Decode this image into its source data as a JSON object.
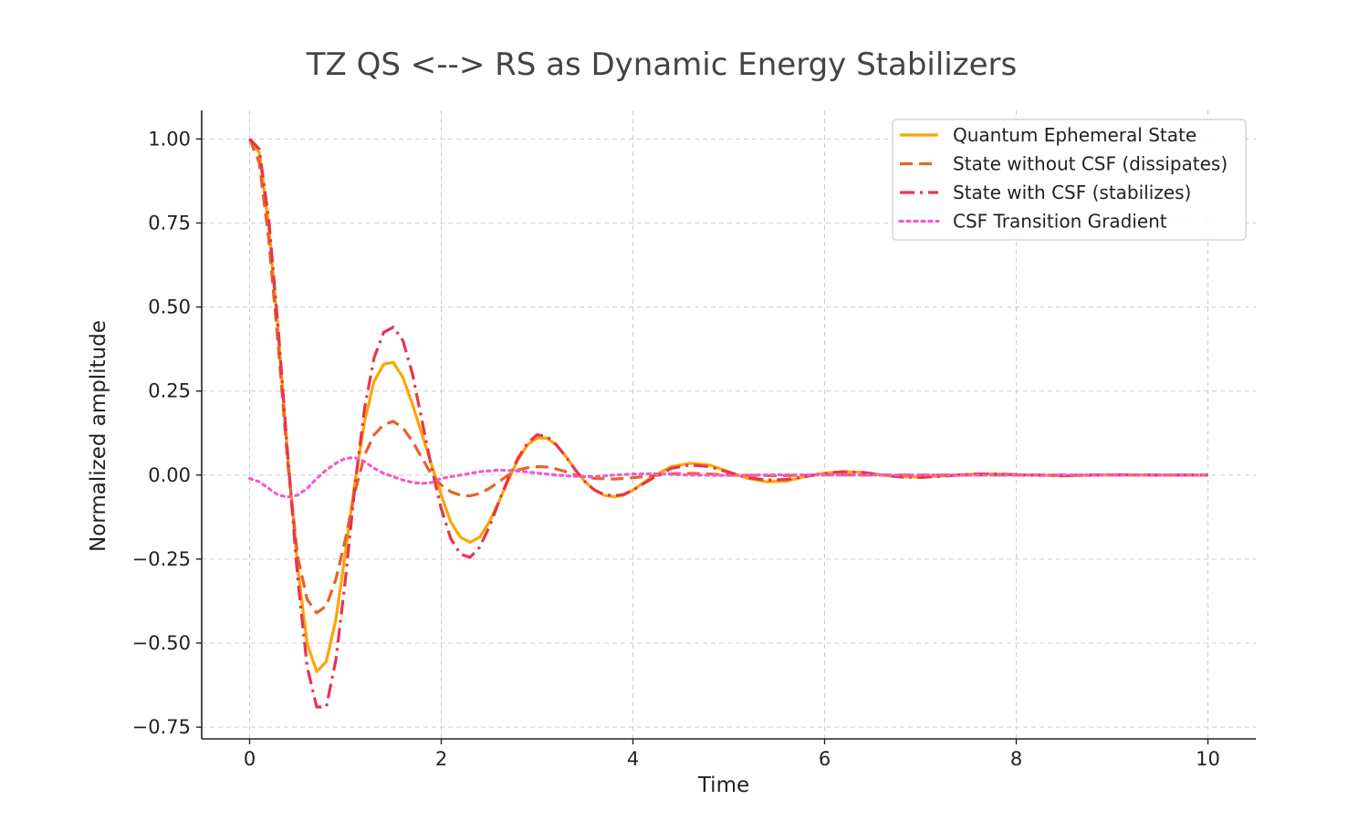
{
  "chart_data": {
    "type": "line",
    "title": "TZ QS <--> RS as Dynamic Energy Stabilizers",
    "xlabel": "Time",
    "ylabel": "Normalized amplitude",
    "xlim": [
      -0.5,
      10.5
    ],
    "ylim": [
      -0.785,
      1.085
    ],
    "xticks": [
      0,
      2,
      4,
      6,
      8,
      10
    ],
    "xtick_labels": [
      "0",
      "2",
      "4",
      "6",
      "8",
      "10"
    ],
    "yticks": [
      1.0,
      0.75,
      0.5,
      0.25,
      0.0,
      -0.25,
      -0.5,
      -0.75
    ],
    "ytick_labels": [
      "1.00",
      "0.75",
      "0.50",
      "0.25",
      "0.00",
      "−0.25",
      "−0.50",
      "−0.75"
    ],
    "grid": true,
    "legend_position": "top-right",
    "series": [
      {
        "name": "Quantum Ephemeral State",
        "color": "#FFA500",
        "style": "solid",
        "points": [
          [
            0,
            1.0
          ],
          [
            0.1,
            0.96
          ],
          [
            0.2,
            0.74
          ],
          [
            0.3,
            0.42
          ],
          [
            0.4,
            0.05
          ],
          [
            0.5,
            -0.27
          ],
          [
            0.6,
            -0.5
          ],
          [
            0.7,
            -0.585
          ],
          [
            0.8,
            -0.555
          ],
          [
            0.9,
            -0.43
          ],
          [
            1.0,
            -0.23
          ],
          [
            1.1,
            -0.02
          ],
          [
            1.2,
            0.16
          ],
          [
            1.3,
            0.28
          ],
          [
            1.4,
            0.33
          ],
          [
            1.5,
            0.335
          ],
          [
            1.6,
            0.29
          ],
          [
            1.7,
            0.21
          ],
          [
            1.8,
            0.12
          ],
          [
            1.9,
            0.03
          ],
          [
            2.0,
            -0.06
          ],
          [
            2.1,
            -0.14
          ],
          [
            2.2,
            -0.185
          ],
          [
            2.3,
            -0.2
          ],
          [
            2.4,
            -0.185
          ],
          [
            2.5,
            -0.14
          ],
          [
            2.6,
            -0.08
          ],
          [
            2.7,
            -0.015
          ],
          [
            2.8,
            0.045
          ],
          [
            2.9,
            0.09
          ],
          [
            3.0,
            0.11
          ],
          [
            3.1,
            0.11
          ],
          [
            3.2,
            0.09
          ],
          [
            3.3,
            0.055
          ],
          [
            3.4,
            0.015
          ],
          [
            3.5,
            -0.02
          ],
          [
            3.6,
            -0.045
          ],
          [
            3.7,
            -0.06
          ],
          [
            3.8,
            -0.065
          ],
          [
            3.9,
            -0.06
          ],
          [
            4.0,
            -0.045
          ],
          [
            4.2,
            -0.005
          ],
          [
            4.4,
            0.025
          ],
          [
            4.6,
            0.035
          ],
          [
            4.8,
            0.03
          ],
          [
            5.0,
            0.01
          ],
          [
            5.2,
            -0.01
          ],
          [
            5.4,
            -0.02
          ],
          [
            5.6,
            -0.018
          ],
          [
            5.8,
            -0.005
          ],
          [
            6.0,
            0.006
          ],
          [
            6.2,
            0.01
          ],
          [
            6.4,
            0.008
          ],
          [
            6.6,
            0.0
          ],
          [
            6.8,
            -0.005
          ],
          [
            7.0,
            -0.006
          ],
          [
            7.2,
            -0.003
          ],
          [
            7.4,
            0.001
          ],
          [
            7.6,
            0.003
          ],
          [
            7.8,
            0.003
          ],
          [
            8.0,
            0.001
          ],
          [
            8.5,
            -0.002
          ],
          [
            9.0,
            0.001
          ],
          [
            9.5,
            0.0
          ],
          [
            10.0,
            0.0
          ]
        ]
      },
      {
        "name": "State without CSF (dissipates)",
        "color": "#E8622A",
        "style": "dashed",
        "points": [
          [
            0,
            1.0
          ],
          [
            0.1,
            0.93
          ],
          [
            0.2,
            0.7
          ],
          [
            0.3,
            0.38
          ],
          [
            0.4,
            0.03
          ],
          [
            0.5,
            -0.24
          ],
          [
            0.6,
            -0.37
          ],
          [
            0.7,
            -0.41
          ],
          [
            0.8,
            -0.39
          ],
          [
            0.9,
            -0.31
          ],
          [
            1.0,
            -0.19
          ],
          [
            1.1,
            -0.05
          ],
          [
            1.2,
            0.06
          ],
          [
            1.3,
            0.12
          ],
          [
            1.4,
            0.15
          ],
          [
            1.5,
            0.16
          ],
          [
            1.6,
            0.14
          ],
          [
            1.7,
            0.1
          ],
          [
            1.8,
            0.05
          ],
          [
            1.9,
            0.0
          ],
          [
            2.0,
            -0.03
          ],
          [
            2.1,
            -0.05
          ],
          [
            2.2,
            -0.06
          ],
          [
            2.3,
            -0.062
          ],
          [
            2.4,
            -0.055
          ],
          [
            2.5,
            -0.04
          ],
          [
            2.6,
            -0.02
          ],
          [
            2.7,
            0.0
          ],
          [
            2.8,
            0.015
          ],
          [
            2.9,
            0.022
          ],
          [
            3.0,
            0.025
          ],
          [
            3.1,
            0.024
          ],
          [
            3.2,
            0.018
          ],
          [
            3.3,
            0.01
          ],
          [
            3.4,
            0.0
          ],
          [
            3.6,
            -0.01
          ],
          [
            3.8,
            -0.012
          ],
          [
            4.0,
            -0.008
          ],
          [
            4.2,
            -0.002
          ],
          [
            4.4,
            0.004
          ],
          [
            4.6,
            0.005
          ],
          [
            4.8,
            0.003
          ],
          [
            5.0,
            0.0
          ],
          [
            5.5,
            -0.002
          ],
          [
            6.0,
            0.001
          ],
          [
            6.5,
            0.0
          ],
          [
            7.0,
            0.0
          ],
          [
            8.0,
            0.0
          ],
          [
            9.0,
            0.0
          ],
          [
            10.0,
            0.0
          ]
        ]
      },
      {
        "name": "State with CSF (stabilizes)",
        "color": "#E8344E",
        "style": "dashdot",
        "points": [
          [
            0,
            1.0
          ],
          [
            0.1,
            0.97
          ],
          [
            0.2,
            0.76
          ],
          [
            0.3,
            0.43
          ],
          [
            0.4,
            0.05
          ],
          [
            0.5,
            -0.3
          ],
          [
            0.6,
            -0.57
          ],
          [
            0.7,
            -0.69
          ],
          [
            0.8,
            -0.69
          ],
          [
            0.9,
            -0.55
          ],
          [
            1.0,
            -0.31
          ],
          [
            1.1,
            -0.03
          ],
          [
            1.2,
            0.2
          ],
          [
            1.3,
            0.35
          ],
          [
            1.4,
            0.425
          ],
          [
            1.5,
            0.44
          ],
          [
            1.6,
            0.4
          ],
          [
            1.7,
            0.3
          ],
          [
            1.8,
            0.16
          ],
          [
            1.9,
            0.02
          ],
          [
            2.0,
            -0.1
          ],
          [
            2.1,
            -0.19
          ],
          [
            2.2,
            -0.235
          ],
          [
            2.3,
            -0.245
          ],
          [
            2.4,
            -0.215
          ],
          [
            2.5,
            -0.155
          ],
          [
            2.6,
            -0.08
          ],
          [
            2.7,
            -0.01
          ],
          [
            2.8,
            0.05
          ],
          [
            2.9,
            0.095
          ],
          [
            3.0,
            0.12
          ],
          [
            3.1,
            0.115
          ],
          [
            3.2,
            0.09
          ],
          [
            3.3,
            0.055
          ],
          [
            3.4,
            0.015
          ],
          [
            3.5,
            -0.02
          ],
          [
            3.6,
            -0.045
          ],
          [
            3.7,
            -0.058
          ],
          [
            3.8,
            -0.062
          ],
          [
            3.9,
            -0.058
          ],
          [
            4.0,
            -0.045
          ],
          [
            4.2,
            -0.01
          ],
          [
            4.4,
            0.02
          ],
          [
            4.6,
            0.03
          ],
          [
            4.8,
            0.025
          ],
          [
            5.0,
            0.008
          ],
          [
            5.2,
            -0.008
          ],
          [
            5.4,
            -0.015
          ],
          [
            5.6,
            -0.013
          ],
          [
            5.8,
            -0.004
          ],
          [
            6.0,
            0.005
          ],
          [
            6.2,
            0.01
          ],
          [
            6.4,
            0.008
          ],
          [
            6.6,
            0.0
          ],
          [
            6.8,
            -0.006
          ],
          [
            7.0,
            -0.007
          ],
          [
            7.2,
            -0.004
          ],
          [
            7.4,
            0.0
          ],
          [
            7.6,
            0.003
          ],
          [
            7.8,
            0.003
          ],
          [
            8.0,
            0.001
          ],
          [
            8.5,
            -0.002
          ],
          [
            9.0,
            0.001
          ],
          [
            9.5,
            0.0
          ],
          [
            10.0,
            0.0
          ]
        ]
      },
      {
        "name": "CSF Transition Gradient",
        "color": "#F25CC8",
        "style": "dotted",
        "points": [
          [
            0,
            -0.01
          ],
          [
            0.1,
            -0.02
          ],
          [
            0.2,
            -0.04
          ],
          [
            0.3,
            -0.06
          ],
          [
            0.4,
            -0.065
          ],
          [
            0.5,
            -0.06
          ],
          [
            0.6,
            -0.04
          ],
          [
            0.7,
            -0.01
          ],
          [
            0.8,
            0.015
          ],
          [
            0.9,
            0.035
          ],
          [
            1.0,
            0.05
          ],
          [
            1.1,
            0.052
          ],
          [
            1.2,
            0.04
          ],
          [
            1.3,
            0.02
          ],
          [
            1.4,
            0.005
          ],
          [
            1.5,
            -0.005
          ],
          [
            1.6,
            -0.015
          ],
          [
            1.7,
            -0.022
          ],
          [
            1.8,
            -0.025
          ],
          [
            1.9,
            -0.022
          ],
          [
            2.0,
            -0.01
          ],
          [
            2.2,
            0.0
          ],
          [
            2.4,
            0.01
          ],
          [
            2.6,
            0.015
          ],
          [
            2.8,
            0.012
          ],
          [
            3.0,
            0.006
          ],
          [
            3.2,
            0.0
          ],
          [
            3.4,
            -0.004
          ],
          [
            3.6,
            -0.005
          ],
          [
            3.8,
            0.0
          ],
          [
            4.0,
            0.003
          ],
          [
            4.2,
            0.004
          ],
          [
            4.4,
            0.002
          ],
          [
            4.6,
            0.0
          ],
          [
            5.0,
            -0.001
          ],
          [
            5.5,
            0.001
          ],
          [
            6.0,
            0.0
          ],
          [
            7.0,
            0.0
          ],
          [
            8.0,
            0.0
          ],
          [
            9.0,
            0.0
          ],
          [
            10.0,
            0.0
          ]
        ]
      }
    ]
  }
}
